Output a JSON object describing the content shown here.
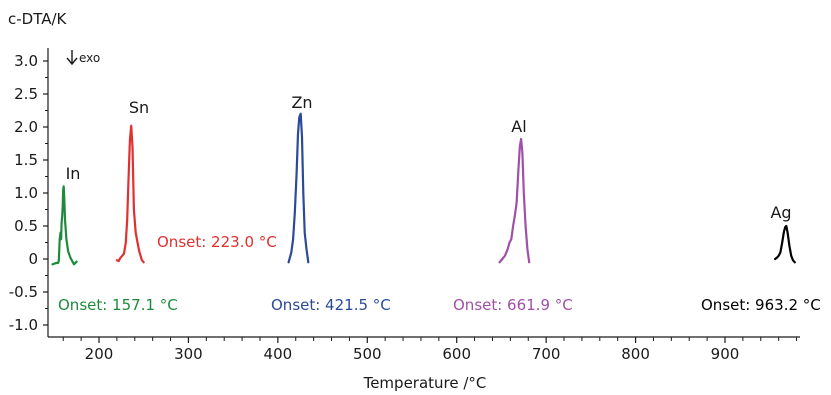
{
  "chart_data": {
    "type": "line",
    "title": "",
    "ylabel": "c-DTA/K",
    "xlabel": "Temperature /°C",
    "exo_marker": "exo",
    "xlim": [
      140,
      990
    ],
    "ylim": [
      -1.0,
      3.0
    ],
    "x_ticks": [
      200,
      300,
      400,
      500,
      600,
      700,
      800,
      900
    ],
    "x_tick_labels": [
      "200",
      "300",
      "400",
      "500",
      "600",
      "700",
      "800",
      "900"
    ],
    "y_ticks": [
      3.0,
      2.5,
      2.0,
      1.5,
      1.0,
      0.5,
      0,
      -0.5,
      -1.0
    ],
    "y_tick_labels": [
      "3.0",
      "2.5",
      "2.0",
      "1.5",
      "1.0",
      "0.5",
      "0",
      "-0.5",
      "-1.0"
    ],
    "grid": false,
    "series": [
      {
        "name": "In",
        "color": "#1e8b3c",
        "onset": "Onset: 157.1 °C",
        "peak": [
          160.5,
          1.1
        ],
        "x": [
          148,
          152,
          154,
          155,
          156,
          157,
          157.6,
          158.2,
          158.8,
          159.4,
          160,
          160.5,
          161.1,
          162,
          163.5,
          165.5,
          168,
          172,
          175
        ],
        "y": [
          -0.08,
          -0.06,
          -0.06,
          -0.03,
          0.3,
          0.4,
          0.3,
          0.55,
          0.65,
          0.8,
          1.05,
          1.1,
          0.95,
          0.6,
          0.3,
          0.12,
          0.02,
          -0.08,
          -0.04
        ]
      },
      {
        "name": "Sn",
        "color": "#e03030",
        "onset": "Onset: 223.0 °C",
        "peak": [
          236,
          2.02
        ],
        "x": [
          220,
          222,
          224,
          226,
          228,
          230,
          231.5,
          233,
          234.5,
          236,
          237.5,
          239,
          241,
          243,
          245,
          248,
          250
        ],
        "y": [
          -0.02,
          -0.03,
          0.02,
          0.05,
          0.08,
          0.25,
          0.6,
          1.2,
          1.8,
          2.02,
          1.7,
          0.75,
          0.4,
          0.25,
          0.12,
          -0.02,
          -0.05
        ]
      },
      {
        "name": "Zn",
        "color": "#2c4a9a",
        "onset": "Onset: 421.5 °C",
        "peak": [
          425.5,
          2.2
        ],
        "x": [
          412,
          415,
          417,
          419,
          421,
          422.5,
          424,
          425.5,
          427,
          428.5,
          430,
          432,
          434
        ],
        "y": [
          -0.05,
          0.1,
          0.3,
          0.7,
          1.3,
          1.9,
          2.15,
          2.2,
          1.85,
          1.0,
          0.4,
          0.15,
          -0.05
        ]
      },
      {
        "name": "Al",
        "color": "#a050a8",
        "onset": "Onset: 661.9 °C",
        "peak": [
          672,
          1.82
        ],
        "x": [
          648,
          651,
          654,
          657,
          659,
          661,
          663,
          665,
          667,
          669,
          670.5,
          672,
          673.5,
          675,
          677,
          679,
          681
        ],
        "y": [
          -0.05,
          0.0,
          0.05,
          0.15,
          0.25,
          0.3,
          0.5,
          0.65,
          0.85,
          1.35,
          1.7,
          1.82,
          1.6,
          1.0,
          0.5,
          0.15,
          -0.05
        ]
      },
      {
        "name": "Ag",
        "color": "#000000",
        "onset": "Onset: 963.2 °C",
        "peak": [
          968.5,
          0.5
        ],
        "x": [
          956,
          958,
          960,
          962,
          964,
          966,
          967.5,
          968.5,
          970,
          972,
          974,
          976,
          978
        ],
        "y": [
          0.0,
          0.02,
          0.05,
          0.1,
          0.25,
          0.42,
          0.49,
          0.5,
          0.4,
          0.2,
          0.05,
          -0.02,
          -0.05
        ]
      }
    ]
  }
}
